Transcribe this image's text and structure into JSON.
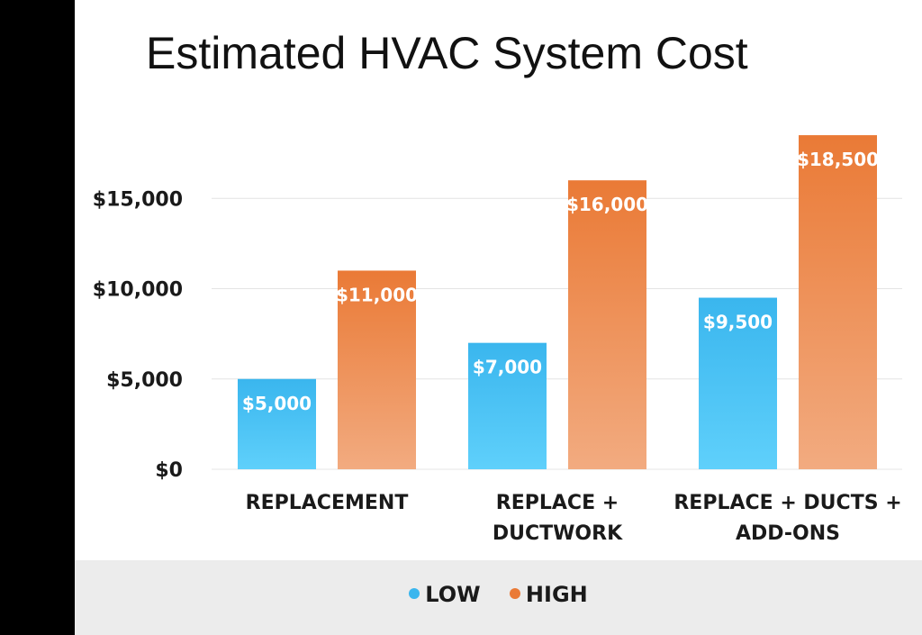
{
  "colors": {
    "low": "#3ab6ee",
    "low_light": "#5fd0fb",
    "high": "#ea7a36",
    "high_light": "#f2ab80",
    "grid": "#e4e4e4",
    "text": "#1a1a1a"
  },
  "chart_data": {
    "type": "bar",
    "title": "Estimated HVAC System Cost",
    "categories": [
      [
        "REPLACEMENT"
      ],
      [
        "REPLACE +",
        "DUCTWORK"
      ],
      [
        "REPLACE + DUCTS +",
        "ADD-ONS"
      ]
    ],
    "series": [
      {
        "name": "LOW",
        "values": [
          5000,
          7000,
          9500
        ],
        "labels": [
          "$5,000",
          "$7,000",
          "$9,500"
        ]
      },
      {
        "name": "HIGH",
        "values": [
          11000,
          16000,
          18500
        ],
        "labels": [
          "$11,000",
          "$16,000",
          "$18,500"
        ]
      }
    ],
    "y_ticks": [
      0,
      5000,
      10000,
      15000
    ],
    "y_tick_labels": [
      "$0",
      "$5,000",
      "$10,000",
      "$15,000"
    ],
    "ylim": [
      0,
      18500
    ],
    "grid": true,
    "legend_position": "bottom-center"
  }
}
